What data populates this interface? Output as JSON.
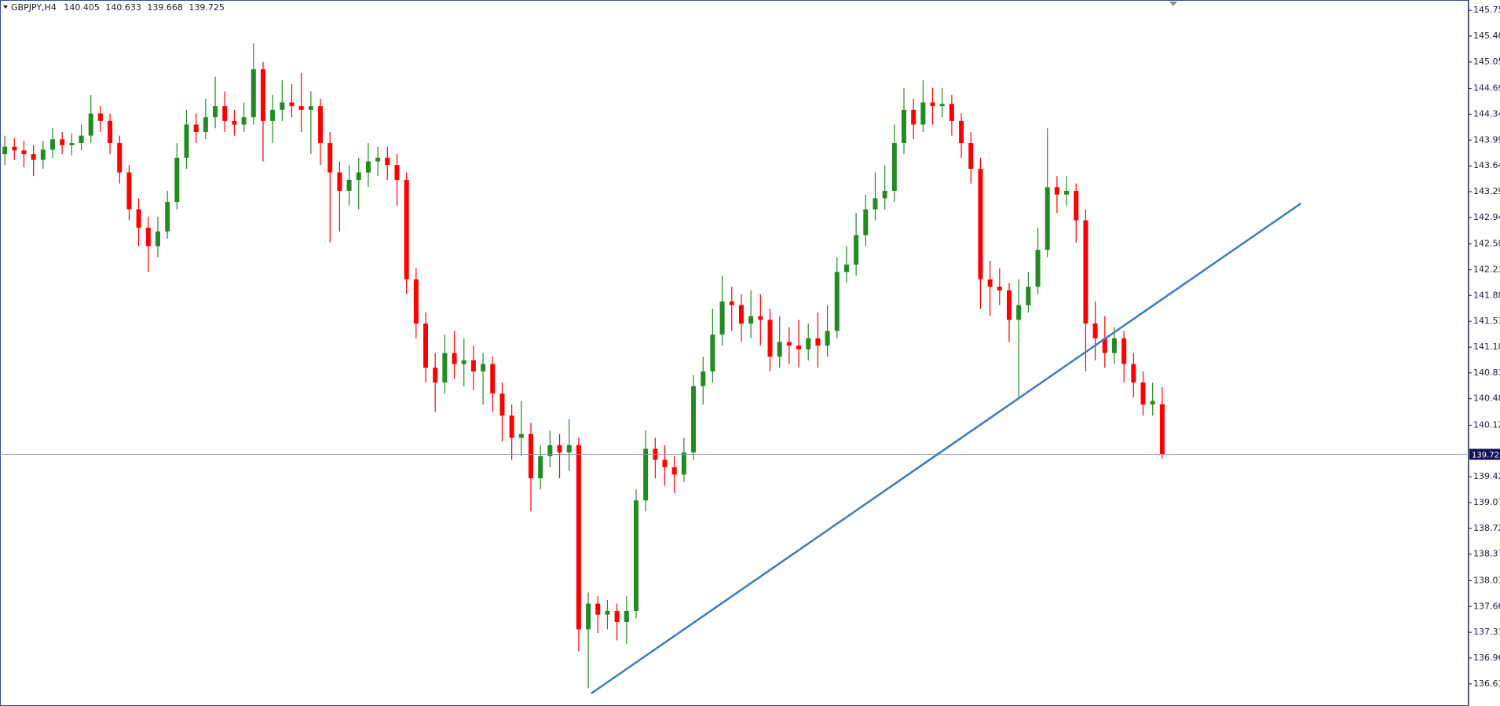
{
  "chart_data": {
    "type": "candlestick",
    "symbol": "GBPJPY,H4",
    "ylim": [
      136.31,
      145.89
    ],
    "yticks": [
      {
        "value": 145.75,
        "label": "145.750"
      },
      {
        "value": 145.4,
        "label": "145.400"
      },
      {
        "value": 145.05,
        "label": "145.050"
      },
      {
        "value": 144.69,
        "label": "144.690"
      },
      {
        "value": 144.34,
        "label": "144.340"
      },
      {
        "value": 143.99,
        "label": "143.990"
      },
      {
        "value": 143.64,
        "label": "143.640"
      },
      {
        "value": 143.29,
        "label": "143.290"
      },
      {
        "value": 142.94,
        "label": "142.940"
      },
      {
        "value": 142.58,
        "label": "142.580"
      },
      {
        "value": 142.23,
        "label": "142.230"
      },
      {
        "value": 141.88,
        "label": "141.880"
      },
      {
        "value": 141.53,
        "label": "141.530"
      },
      {
        "value": 141.18,
        "label": "141.180"
      },
      {
        "value": 140.83,
        "label": "140.830"
      },
      {
        "value": 140.48,
        "label": "140.480"
      },
      {
        "value": 140.12,
        "label": "140.120"
      },
      {
        "value": 139.42,
        "label": "139.420"
      },
      {
        "value": 139.07,
        "label": "139.070"
      },
      {
        "value": 138.72,
        "label": "138.720"
      },
      {
        "value": 138.37,
        "label": "138.370"
      },
      {
        "value": 138.01,
        "label": "138.010"
      },
      {
        "value": 137.66,
        "label": "137.660"
      },
      {
        "value": 137.31,
        "label": "137.310"
      },
      {
        "value": 136.96,
        "label": "136.960"
      },
      {
        "value": 136.61,
        "label": "136.610"
      }
    ],
    "up_color": "#228b22",
    "down_color": "#ff0000",
    "candles": [
      [
        143.8,
        144.05,
        143.65,
        143.9
      ],
      [
        143.9,
        144.02,
        143.72,
        143.85
      ],
      [
        143.85,
        143.98,
        143.62,
        143.8
      ],
      [
        143.8,
        143.92,
        143.5,
        143.72
      ],
      [
        143.72,
        143.98,
        143.6,
        143.86
      ],
      [
        143.86,
        144.15,
        143.75,
        144.0
      ],
      [
        144.0,
        144.1,
        143.8,
        143.92
      ],
      [
        143.92,
        144.08,
        143.78,
        143.95
      ],
      [
        143.95,
        144.2,
        143.85,
        144.05
      ],
      [
        144.05,
        144.6,
        143.95,
        144.35
      ],
      [
        144.35,
        144.45,
        144.1,
        144.25
      ],
      [
        144.25,
        144.35,
        143.8,
        143.95
      ],
      [
        143.95,
        144.05,
        143.4,
        143.55
      ],
      [
        143.55,
        143.65,
        142.9,
        143.05
      ],
      [
        143.05,
        143.2,
        142.55,
        142.8
      ],
      [
        142.8,
        142.95,
        142.2,
        142.55
      ],
      [
        142.55,
        142.95,
        142.4,
        142.75
      ],
      [
        142.75,
        143.3,
        142.65,
        143.15
      ],
      [
        143.15,
        143.95,
        143.05,
        143.75
      ],
      [
        143.75,
        144.4,
        143.6,
        144.2
      ],
      [
        144.2,
        144.35,
        143.95,
        144.1
      ],
      [
        144.1,
        144.55,
        144.0,
        144.3
      ],
      [
        144.3,
        144.85,
        144.15,
        144.45
      ],
      [
        144.45,
        144.65,
        144.1,
        144.25
      ],
      [
        144.25,
        144.4,
        144.05,
        144.2
      ],
      [
        144.2,
        144.5,
        144.1,
        144.3
      ],
      [
        144.3,
        145.3,
        144.2,
        144.95
      ],
      [
        144.95,
        145.05,
        143.7,
        144.25
      ],
      [
        144.25,
        144.6,
        143.95,
        144.4
      ],
      [
        144.4,
        144.8,
        144.25,
        144.5
      ],
      [
        144.5,
        144.75,
        144.3,
        144.45
      ],
      [
        144.45,
        144.9,
        144.1,
        144.4
      ],
      [
        144.4,
        144.65,
        143.8,
        144.45
      ],
      [
        144.45,
        144.55,
        143.65,
        143.95
      ],
      [
        143.95,
        144.1,
        142.6,
        143.55
      ],
      [
        143.55,
        143.7,
        142.75,
        143.3
      ],
      [
        143.3,
        143.65,
        143.1,
        143.45
      ],
      [
        143.45,
        143.75,
        143.05,
        143.55
      ],
      [
        143.55,
        143.95,
        143.35,
        143.7
      ],
      [
        143.7,
        143.9,
        143.5,
        143.75
      ],
      [
        143.75,
        143.9,
        143.45,
        143.65
      ],
      [
        143.65,
        143.8,
        143.1,
        143.45
      ],
      [
        143.45,
        143.55,
        141.9,
        142.1
      ],
      [
        142.1,
        142.25,
        141.3,
        141.5
      ],
      [
        141.5,
        141.65,
        140.7,
        140.9
      ],
      [
        140.9,
        141.1,
        140.3,
        140.7
      ],
      [
        140.7,
        141.35,
        140.55,
        141.1
      ],
      [
        141.1,
        141.4,
        140.75,
        140.95
      ],
      [
        140.95,
        141.3,
        140.65,
        141.0
      ],
      [
        141.0,
        141.2,
        140.6,
        140.85
      ],
      [
        140.85,
        141.1,
        140.4,
        140.95
      ],
      [
        140.95,
        141.05,
        140.3,
        140.55
      ],
      [
        140.55,
        140.7,
        139.9,
        140.25
      ],
      [
        140.25,
        140.4,
        139.65,
        139.95
      ],
      [
        139.95,
        140.45,
        139.7,
        140.0
      ],
      [
        140.0,
        140.15,
        138.95,
        139.4
      ],
      [
        139.4,
        139.85,
        139.25,
        139.7
      ],
      [
        139.7,
        140.05,
        139.55,
        139.85
      ],
      [
        139.85,
        140.0,
        139.4,
        139.75
      ],
      [
        139.75,
        140.2,
        139.5,
        139.85
      ],
      [
        139.85,
        139.95,
        137.05,
        137.35
      ],
      [
        137.35,
        137.85,
        136.55,
        137.7
      ],
      [
        137.7,
        137.8,
        137.3,
        137.55
      ],
      [
        137.55,
        137.75,
        137.35,
        137.6
      ],
      [
        137.6,
        137.7,
        137.2,
        137.45
      ],
      [
        137.45,
        137.8,
        137.15,
        137.6
      ],
      [
        137.6,
        139.25,
        137.5,
        139.1
      ],
      [
        139.1,
        140.05,
        138.95,
        139.8
      ],
      [
        139.8,
        139.95,
        139.4,
        139.65
      ],
      [
        139.65,
        139.85,
        139.3,
        139.55
      ],
      [
        139.55,
        139.7,
        139.2,
        139.45
      ],
      [
        139.45,
        139.95,
        139.35,
        139.75
      ],
      [
        139.75,
        140.8,
        139.65,
        140.65
      ],
      [
        140.65,
        141.05,
        140.4,
        140.85
      ],
      [
        140.85,
        141.7,
        140.7,
        141.35
      ],
      [
        141.35,
        142.15,
        141.2,
        141.8
      ],
      [
        141.8,
        142.0,
        141.4,
        141.75
      ],
      [
        141.75,
        141.9,
        141.25,
        141.5
      ],
      [
        141.5,
        141.95,
        141.3,
        141.6
      ],
      [
        141.6,
        141.9,
        141.2,
        141.55
      ],
      [
        141.55,
        141.7,
        140.85,
        141.05
      ],
      [
        141.05,
        141.6,
        140.9,
        141.25
      ],
      [
        141.25,
        141.45,
        140.95,
        141.2
      ],
      [
        141.2,
        141.55,
        140.9,
        141.15
      ],
      [
        141.15,
        141.5,
        141.0,
        141.3
      ],
      [
        141.3,
        141.65,
        140.9,
        141.2
      ],
      [
        141.2,
        141.75,
        141.05,
        141.4
      ],
      [
        141.4,
        142.4,
        141.3,
        142.2
      ],
      [
        142.2,
        142.55,
        142.05,
        142.3
      ],
      [
        142.3,
        143.0,
        142.15,
        142.7
      ],
      [
        142.7,
        143.25,
        142.55,
        143.05
      ],
      [
        143.05,
        143.55,
        142.9,
        143.2
      ],
      [
        143.2,
        143.65,
        143.05,
        143.3
      ],
      [
        143.3,
        144.2,
        143.15,
        143.95
      ],
      [
        143.95,
        144.7,
        143.8,
        144.4
      ],
      [
        144.4,
        144.55,
        144.0,
        144.2
      ],
      [
        144.2,
        144.8,
        144.1,
        144.5
      ],
      [
        144.5,
        144.7,
        144.2,
        144.45
      ],
      [
        144.45,
        144.7,
        144.3,
        144.48
      ],
      [
        144.48,
        144.6,
        144.05,
        144.25
      ],
      [
        144.25,
        144.35,
        143.75,
        143.95
      ],
      [
        143.95,
        144.1,
        143.4,
        143.6
      ],
      [
        143.6,
        143.75,
        141.7,
        142.1
      ],
      [
        142.1,
        142.35,
        141.6,
        142.0
      ],
      [
        142.0,
        142.25,
        141.75,
        141.95
      ],
      [
        141.95,
        142.05,
        141.25,
        141.55
      ],
      [
        141.55,
        142.1,
        140.5,
        141.75
      ],
      [
        141.75,
        142.2,
        141.65,
        142.0
      ],
      [
        142.0,
        142.8,
        141.9,
        142.5
      ],
      [
        142.5,
        144.15,
        142.4,
        143.35
      ],
      [
        143.35,
        143.5,
        143.0,
        143.25
      ],
      [
        143.25,
        143.5,
        143.1,
        143.3
      ],
      [
        143.3,
        143.4,
        142.6,
        142.9
      ],
      [
        142.9,
        143.05,
        140.85,
        141.5
      ],
      [
        141.5,
        141.8,
        141.0,
        141.3
      ],
      [
        141.3,
        141.6,
        140.9,
        141.1
      ],
      [
        141.1,
        141.45,
        140.95,
        141.3
      ],
      [
        141.3,
        141.4,
        140.7,
        140.95
      ],
      [
        140.95,
        141.1,
        140.5,
        140.7
      ],
      [
        140.7,
        140.85,
        140.25,
        140.4
      ],
      [
        140.4,
        140.7,
        140.25,
        140.45
      ],
      [
        140.405,
        140.633,
        139.668,
        139.725
      ]
    ],
    "trendline": {
      "start": [
        61.3,
        136.48
      ],
      "end": [
        135.5,
        143.13
      ],
      "color": "#3c7dbf"
    }
  }
}
